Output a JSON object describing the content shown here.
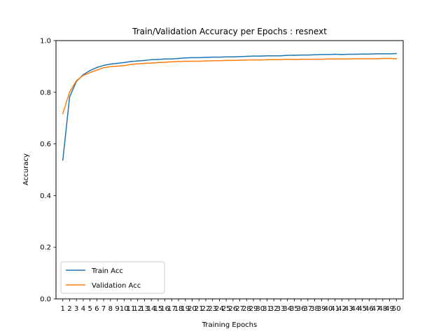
{
  "chart_data": {
    "type": "line",
    "title": "Train/Validation Accuracy per Epochs : resnext",
    "xlabel": "Training Epochs",
    "ylabel": "Accuracy",
    "ylim": [
      0.0,
      1.0
    ],
    "xlim": [
      0,
      51
    ],
    "yticks": [
      "0.0",
      "0.2",
      "0.4",
      "0.6",
      "0.8",
      "1.0"
    ],
    "x": [
      1,
      2,
      3,
      4,
      5,
      6,
      7,
      8,
      9,
      10,
      11,
      12,
      13,
      14,
      15,
      16,
      17,
      18,
      19,
      20,
      21,
      22,
      23,
      24,
      25,
      26,
      27,
      28,
      29,
      30,
      31,
      32,
      33,
      34,
      35,
      36,
      37,
      38,
      39,
      40,
      41,
      42,
      43,
      44,
      45,
      46,
      47,
      48,
      49,
      50
    ],
    "legend_position": "lower-left",
    "grid": false,
    "series": [
      {
        "name": "Train Acc",
        "color": "#1f77b4",
        "values": [
          0.537,
          0.782,
          0.842,
          0.868,
          0.884,
          0.896,
          0.904,
          0.909,
          0.912,
          0.915,
          0.919,
          0.921,
          0.923,
          0.926,
          0.927,
          0.929,
          0.929,
          0.931,
          0.933,
          0.934,
          0.934,
          0.935,
          0.936,
          0.936,
          0.937,
          0.937,
          0.938,
          0.939,
          0.94,
          0.94,
          0.941,
          0.941,
          0.941,
          0.943,
          0.943,
          0.944,
          0.944,
          0.945,
          0.946,
          0.946,
          0.947,
          0.946,
          0.947,
          0.947,
          0.948,
          0.948,
          0.949,
          0.949,
          0.949,
          0.95
        ]
      },
      {
        "name": "Validation Acc",
        "color": "#ff7f0e",
        "values": [
          0.717,
          0.801,
          0.845,
          0.865,
          0.876,
          0.886,
          0.895,
          0.899,
          0.901,
          0.903,
          0.908,
          0.91,
          0.912,
          0.913,
          0.915,
          0.916,
          0.918,
          0.919,
          0.92,
          0.92,
          0.92,
          0.921,
          0.922,
          0.922,
          0.923,
          0.923,
          0.924,
          0.925,
          0.925,
          0.925,
          0.926,
          0.926,
          0.927,
          0.928,
          0.927,
          0.928,
          0.928,
          0.928,
          0.928,
          0.929,
          0.929,
          0.929,
          0.929,
          0.93,
          0.93,
          0.93,
          0.93,
          0.931,
          0.931,
          0.93
        ]
      }
    ]
  }
}
